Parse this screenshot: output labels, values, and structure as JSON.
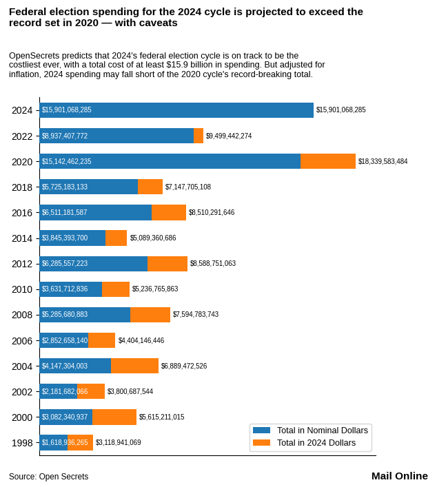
{
  "chart_data": {
    "type": "bar",
    "orientation": "horizontal",
    "title": "Federal election spending for the 2024 cycle is projected to exceed the\nrecord set in 2020 — with caveats",
    "subtitle": "OpenSecrets predicts that 2024's federal election cycle is on track to be the\ncostliest ever, with a total cost of at least $15.9 billion in spending. But adjusted for\ninflation, 2024 spending may fall short of the 2020 cycle's record-breaking total.",
    "annotations": [
      "Source: Open Secrets",
      "Mail Online"
    ],
    "categories": [
      "2024",
      "2022",
      "2020",
      "2018",
      "2016",
      "2014",
      "2012",
      "2010",
      "2008",
      "2006",
      "2004",
      "2002",
      "2000",
      "1998"
    ],
    "series": [
      {
        "name": "Total in Nominal Dollars",
        "values": [
          15901068285,
          8937407772,
          15142462235,
          5725183133,
          6511181587,
          3845393700,
          6285557223,
          3631712836,
          5285680883,
          2852658140,
          4147304003,
          2181682066,
          3082340937,
          1618936265
        ],
        "value_labels": [
          "$15,901,068,285",
          "$8,937,407,772",
          "$15,142,462,235",
          "$5,725,183,133",
          "$6,511,181,587",
          "$3,845,393,700",
          "$6,285,557,223",
          "$3,631,712,836",
          "$5,285,680,883",
          "$2,852,658,140",
          "$4,147,304,003",
          "$2,181,682,066",
          "$3,082,340,937",
          "$1,618,936,265"
        ]
      },
      {
        "name": "Total in 2024 Dollars",
        "values": [
          15901068285,
          9499442274,
          18339583484,
          7147705108,
          8510291646,
          5089360686,
          8588751063,
          5236765863,
          7594783743,
          4404146446,
          6889472526,
          3800687544,
          5615211015,
          3118941069
        ],
        "value_labels": [
          "$15,901,068,285",
          "$9,499,442,274",
          "$18,339,583,484",
          "$7,147,705,108",
          "$8,510,291,646",
          "$5,089,360,686",
          "$8,588,751,063",
          "$5,236,765,863",
          "$7,594,783,743",
          "$4,404,146,446",
          "$6,889,472,526",
          "$3,800,687,544",
          "$5,615,211,015",
          "$3,118,941,069"
        ]
      }
    ],
    "xlim": [
      0,
      19500000000
    ],
    "tick_labels": "y",
    "data_labels": true,
    "legend": "lower right",
    "grid": false
  }
}
